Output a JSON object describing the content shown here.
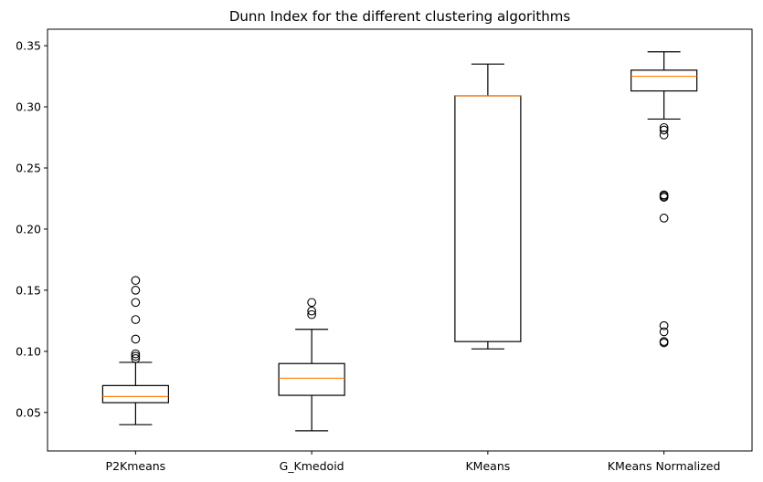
{
  "chart_data": {
    "type": "boxplot",
    "title": "Dunn Index for the different clustering algorithms",
    "xlabel": "",
    "ylabel": "",
    "ylim": [
      0.0185,
      0.3635
    ],
    "yticks": [
      "0.05",
      "0.10",
      "0.15",
      "0.20",
      "0.25",
      "0.30",
      "0.35"
    ],
    "categories": [
      "P2Kmeans",
      "G_Kmedoid",
      "KMeans",
      "KMeans Normalized"
    ],
    "boxes": [
      {
        "whisker_low": 0.04,
        "q1": 0.058,
        "median": 0.063,
        "q3": 0.072,
        "whisker_high": 0.091,
        "outliers": [
          0.158,
          0.15,
          0.14,
          0.126,
          0.11,
          0.098,
          0.096,
          0.094
        ]
      },
      {
        "whisker_low": 0.035,
        "q1": 0.064,
        "median": 0.078,
        "q3": 0.09,
        "whisker_high": 0.118,
        "outliers": [
          0.14,
          0.133,
          0.13
        ]
      },
      {
        "whisker_low": 0.102,
        "q1": 0.108,
        "median": 0.309,
        "q3": 0.309,
        "whisker_high": 0.335,
        "outliers": []
      },
      {
        "whisker_low": 0.29,
        "q1": 0.313,
        "median": 0.325,
        "q3": 0.33,
        "whisker_high": 0.345,
        "outliers": [
          0.283,
          0.281,
          0.277,
          0.228,
          0.227,
          0.226,
          0.209,
          0.121,
          0.116,
          0.108,
          0.107
        ]
      }
    ],
    "colors": {
      "box": "#000000",
      "median": "#ff7f0e",
      "flier": "#000000"
    },
    "grid": false,
    "legend": "none"
  }
}
